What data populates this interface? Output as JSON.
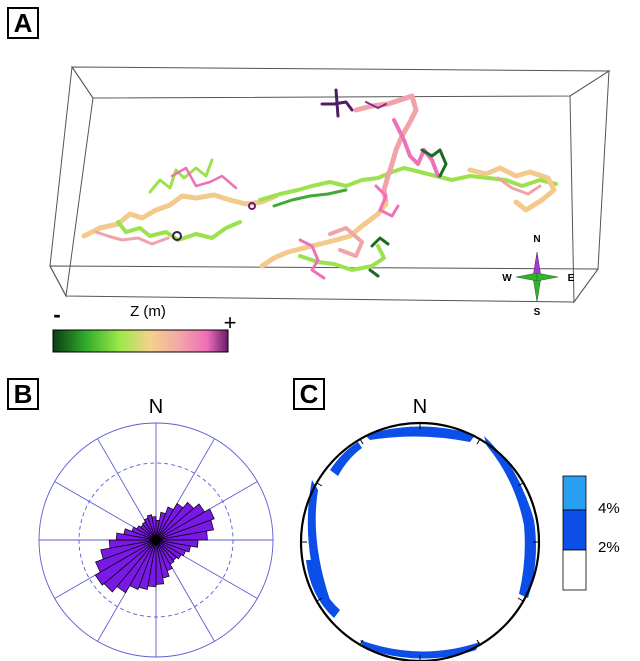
{
  "panels": {
    "a": {
      "label": "A",
      "colorbar": {
        "title": "Z (m)",
        "min_label": "-",
        "max_label": "+",
        "colors": [
          "#0b3d12",
          "#2fa82a",
          "#9be84a",
          "#f5d28a",
          "#f3a7a7",
          "#ee6fb7",
          "#6b1b6e"
        ]
      },
      "compass": {
        "n": "N",
        "s": "S",
        "e": "E",
        "w": "W"
      }
    },
    "b": {
      "label": "B",
      "north_label": "N",
      "rose_color": "#7a18e6",
      "rose_relative_lengths": [
        0.17,
        0.24,
        0.3,
        0.36,
        0.42,
        0.48,
        0.53,
        0.5,
        0.44,
        0.36,
        0.3,
        0.27,
        0.25,
        0.23,
        0.24,
        0.28,
        0.33,
        0.38,
        0.4,
        0.43,
        0.45,
        0.52,
        0.58,
        0.6,
        0.55,
        0.48,
        0.4,
        0.34,
        0.28,
        0.22,
        0.19,
        0.17,
        0.18,
        0.2,
        0.22,
        0.2
      ]
    },
    "c": {
      "label": "C",
      "north_label": "N",
      "legend": {
        "labels": [
          "4%",
          "2%"
        ],
        "colors": [
          "#2aa0f2",
          "#0b4fe8",
          "#ffffff"
        ]
      }
    }
  }
}
